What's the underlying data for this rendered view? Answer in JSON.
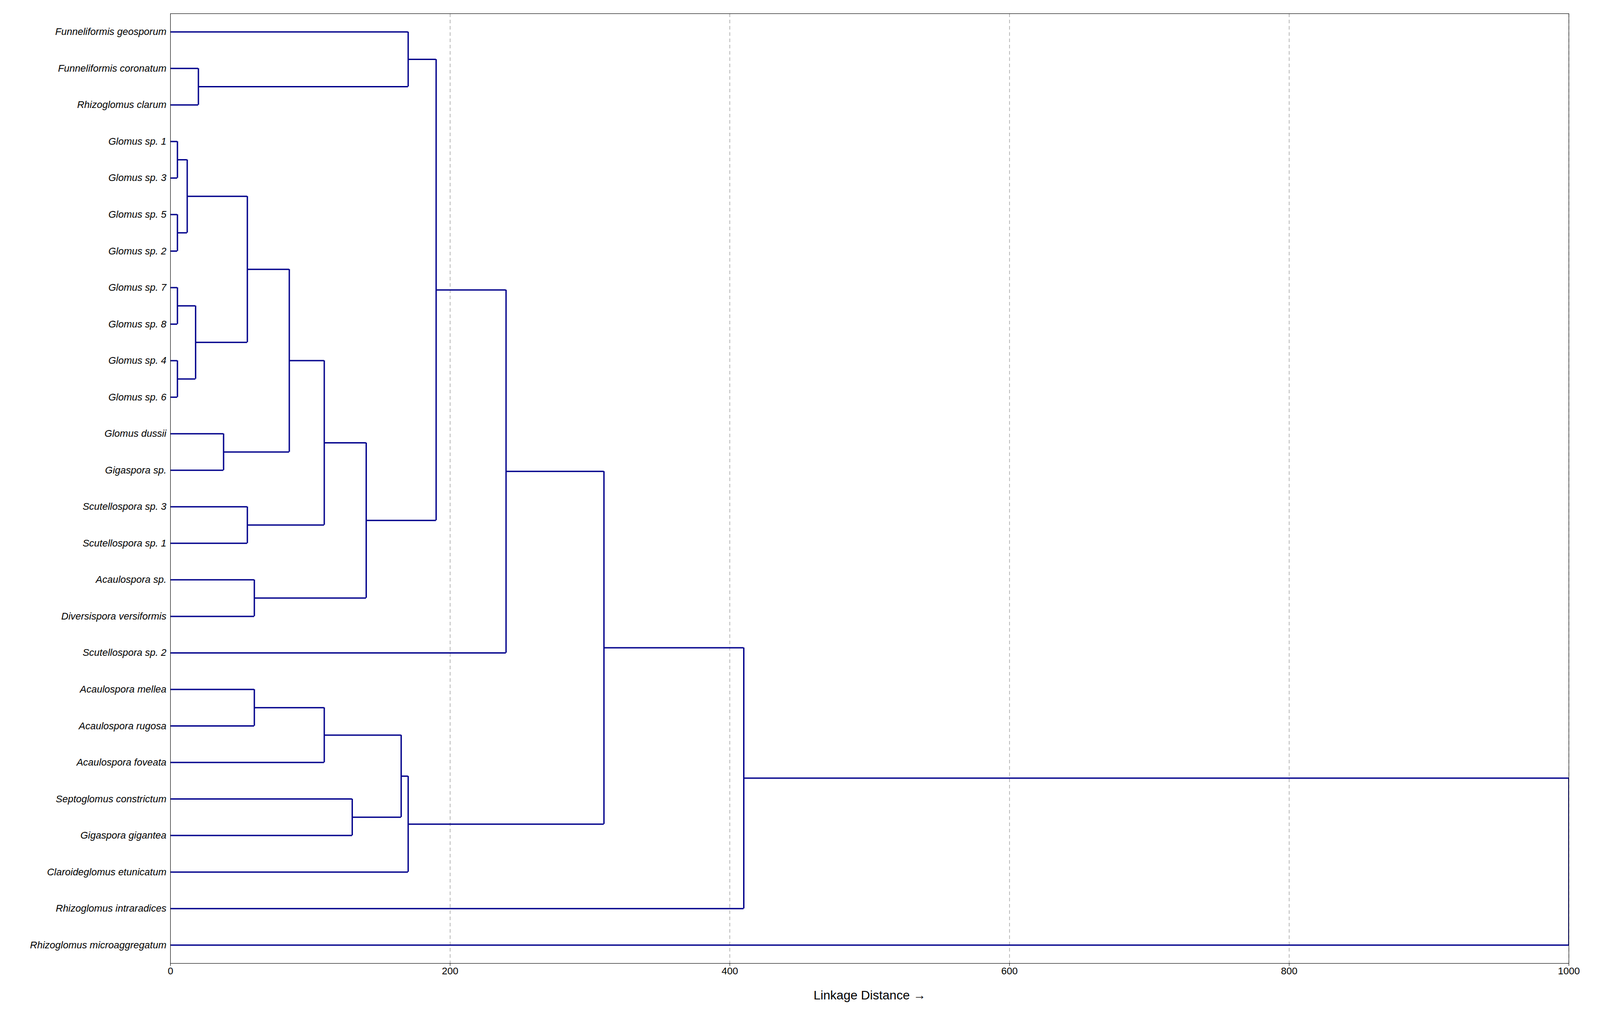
{
  "chart_data": {
    "type": "dendrogram",
    "labels": [
      "Funneliformis geosporum",
      "Funneliformis coronatum",
      "Rhizoglomus clarum",
      "Glomus sp. 1",
      "Glomus sp. 3",
      "Glomus sp. 5",
      "Glomus sp. 2",
      "Glomus sp. 7",
      "Glomus sp. 8",
      "Glomus sp. 4",
      "Glomus sp. 6",
      "Glomus dussii",
      "Gigaspora sp.",
      "Scutellospora sp. 3",
      "Scutellospora sp. 1",
      "Acaulospora sp.",
      "Diversispora versiformis",
      "Scutellospora sp. 2",
      "Acaulospora mellea",
      "Acaulospora rugosa",
      "Acaulospora foveata",
      "Septoglomus constrictum",
      "Gigaspora gigantea",
      "Claroideglomus etunicatum",
      "Rhizoglomus intraradices",
      "Rhizoglomus microaggregatum"
    ],
    "merges": [
      {
        "a": 1,
        "b": 2,
        "dist": 20
      },
      {
        "a": 0,
        "b": 26,
        "dist": 170
      },
      {
        "a": 3,
        "b": 4,
        "dist": 5
      },
      {
        "a": 5,
        "b": 6,
        "dist": 5
      },
      {
        "a": 28,
        "b": 29,
        "dist": 12
      },
      {
        "a": 7,
        "b": 8,
        "dist": 5
      },
      {
        "a": 9,
        "b": 10,
        "dist": 5
      },
      {
        "a": 31,
        "b": 32,
        "dist": 18
      },
      {
        "a": 30,
        "b": 33,
        "dist": 55
      },
      {
        "a": 11,
        "b": 12,
        "dist": 38
      },
      {
        "a": 34,
        "b": 35,
        "dist": 85
      },
      {
        "a": 13,
        "b": 14,
        "dist": 55
      },
      {
        "a": 36,
        "b": 37,
        "dist": 110
      },
      {
        "a": 15,
        "b": 16,
        "dist": 60
      },
      {
        "a": 38,
        "b": 39,
        "dist": 140
      },
      {
        "a": 27,
        "b": 40,
        "dist": 190
      },
      {
        "a": 41,
        "b": 17,
        "dist": 240
      },
      {
        "a": 18,
        "b": 19,
        "dist": 60
      },
      {
        "a": 43,
        "b": 20,
        "dist": 110
      },
      {
        "a": 21,
        "b": 22,
        "dist": 130
      },
      {
        "a": 44,
        "b": 45,
        "dist": 165
      },
      {
        "a": 46,
        "b": 23,
        "dist": 170
      },
      {
        "a": 42,
        "b": 47,
        "dist": 310
      },
      {
        "a": 48,
        "b": 24,
        "dist": 410
      },
      {
        "a": 49,
        "b": 25,
        "dist": 1000
      }
    ],
    "color": "#00008B",
    "xlabel": "Linkage Distance",
    "xlim": [
      0,
      1000
    ],
    "xticks": [
      0,
      200,
      400,
      600,
      800,
      1000
    ],
    "grid": true
  }
}
